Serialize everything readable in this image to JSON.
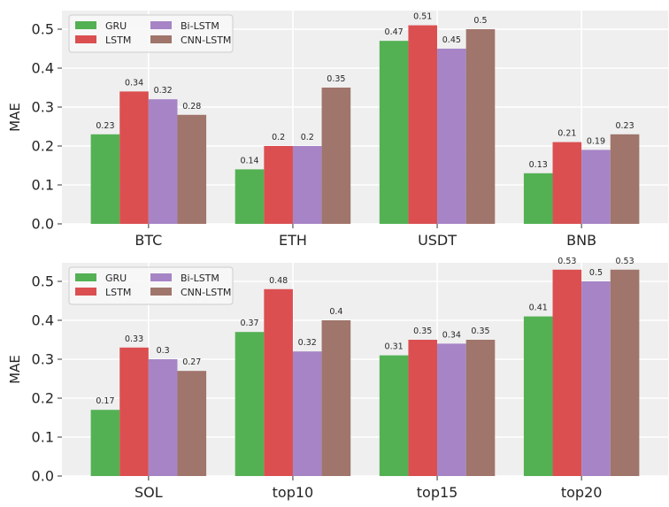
{
  "chart_data": [
    {
      "type": "bar",
      "title": "",
      "xlabel": "",
      "ylabel": "MAE",
      "ylim": [
        0,
        0.5477
      ],
      "yticks": [
        "0.0",
        "0.1",
        "0.2",
        "0.3",
        "0.4",
        "0.5"
      ],
      "ytick_values": [
        0,
        0.1,
        0.2,
        0.3,
        0.4,
        0.5
      ],
      "grid": true,
      "legend_position": "top-left",
      "categories": [
        "BTC",
        "ETH",
        "USDT",
        "BNB"
      ],
      "series": [
        {
          "name": "GRU",
          "color": "#53B153",
          "values": [
            0.23,
            0.14,
            0.47,
            0.13
          ]
        },
        {
          "name": "LSTM",
          "color": "#DB4F51",
          "values": [
            0.34,
            0.2,
            0.51,
            0.21
          ]
        },
        {
          "name": "Bi-LSTM",
          "color": "#A684C6",
          "values": [
            0.32,
            0.2,
            0.45,
            0.19
          ]
        },
        {
          "name": "CNN-LSTM",
          "color": "#A0756B",
          "values": [
            0.28,
            0.35,
            0.5,
            0.23
          ]
        }
      ]
    },
    {
      "type": "bar",
      "title": "",
      "xlabel": "",
      "ylabel": "MAE",
      "ylim": [
        0,
        0.5477
      ],
      "yticks": [
        "0.0",
        "0.1",
        "0.2",
        "0.3",
        "0.4",
        "0.5"
      ],
      "ytick_values": [
        0,
        0.1,
        0.2,
        0.3,
        0.4,
        0.5
      ],
      "grid": true,
      "legend_position": "top-left",
      "categories": [
        "SOL",
        "top10",
        "top15",
        "top20"
      ],
      "series": [
        {
          "name": "GRU",
          "color": "#53B153",
          "values": [
            0.17,
            0.37,
            0.31,
            0.41
          ]
        },
        {
          "name": "LSTM",
          "color": "#DB4F51",
          "values": [
            0.33,
            0.48,
            0.35,
            0.53
          ]
        },
        {
          "name": "Bi-LSTM",
          "color": "#A684C6",
          "values": [
            0.3,
            0.32,
            0.34,
            0.5
          ]
        },
        {
          "name": "CNN-LSTM",
          "color": "#A0756B",
          "values": [
            0.27,
            0.4,
            0.35,
            0.53
          ]
        }
      ]
    }
  ],
  "style": {
    "plot_background": "#EFEFEF",
    "grid_color": "#FFFFFF"
  }
}
